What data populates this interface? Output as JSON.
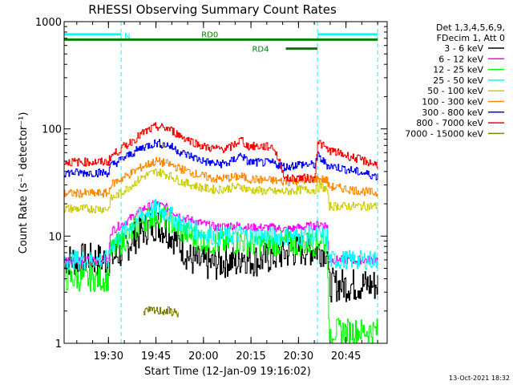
{
  "chart_data": {
    "type": "line",
    "title": "RHESSI Observing Summary Count Rates",
    "xlabel": "Start Time (12-Jan-09 19:16:02)",
    "ylabel": "Count Rate (s⁻¹ detector⁻¹)",
    "y_scale": "log",
    "ylim": [
      1,
      1000
    ],
    "xlim_minutes": [
      0,
      102
    ],
    "x_ticks": [
      {
        "minutes": 14,
        "label": "19:30"
      },
      {
        "minutes": 29,
        "label": "19:45"
      },
      {
        "minutes": 44,
        "label": "20:00"
      },
      {
        "minutes": 59,
        "label": "20:15"
      },
      {
        "minutes": 74,
        "label": "20:30"
      },
      {
        "minutes": 89,
        "label": "20:45"
      }
    ],
    "y_ticks": [
      {
        "value": 1,
        "label": "1"
      },
      {
        "value": 10,
        "label": "10"
      },
      {
        "value": 100,
        "label": "100"
      },
      {
        "value": 1000,
        "label": "1000"
      }
    ],
    "legend_header": [
      "Det 1,3,4,5,6,9,",
      "FDecim 1, Att 0"
    ],
    "legend_position": "right",
    "series": [
      {
        "name": "3 - 6 keV",
        "color": "#000000",
        "points": [
          [
            0,
            6
          ],
          [
            14,
            6
          ],
          [
            18,
            7
          ],
          [
            21,
            9
          ],
          [
            25,
            11.5
          ],
          [
            29,
            13
          ],
          [
            33,
            11
          ],
          [
            37,
            8
          ],
          [
            40,
            6
          ],
          [
            44,
            5.5
          ],
          [
            48,
            5.5
          ],
          [
            52,
            6
          ],
          [
            55,
            5.5
          ],
          [
            56,
            7
          ],
          [
            58,
            6
          ],
          [
            62,
            6
          ],
          [
            66,
            6.5
          ],
          [
            70,
            7
          ],
          [
            74,
            7.5
          ],
          [
            80,
            7.5
          ],
          [
            83,
            7.5
          ],
          [
            83.5,
            3.5
          ],
          [
            99,
            3.5
          ]
        ]
      },
      {
        "name": "6 - 12 keV",
        "color": "#ff00ff",
        "points": [
          [
            0,
            6
          ],
          [
            14,
            6
          ],
          [
            14.5,
            11
          ],
          [
            20,
            14
          ],
          [
            25,
            18
          ],
          [
            29,
            20
          ],
          [
            33,
            18
          ],
          [
            37,
            15
          ],
          [
            44,
            13
          ],
          [
            48,
            12
          ],
          [
            52,
            12.5
          ],
          [
            56,
            12.5
          ],
          [
            58,
            12
          ],
          [
            66,
            12
          ],
          [
            70,
            11.5
          ],
          [
            74,
            12
          ],
          [
            79,
            12.5
          ],
          [
            81,
            13
          ],
          [
            83,
            12.5
          ],
          [
            83.5,
            6
          ],
          [
            99,
            6
          ]
        ]
      },
      {
        "name": "12 - 25 keV",
        "color": "#00ff00",
        "points": [
          [
            0,
            4
          ],
          [
            14,
            4
          ],
          [
            14.5,
            7
          ],
          [
            20,
            10
          ],
          [
            25,
            14
          ],
          [
            29,
            16
          ],
          [
            33,
            14
          ],
          [
            37,
            11
          ],
          [
            44,
            9
          ],
          [
            48,
            8.5
          ],
          [
            52,
            8.5
          ],
          [
            56,
            9
          ],
          [
            58,
            8.5
          ],
          [
            66,
            8.5
          ],
          [
            70,
            8.5
          ],
          [
            74,
            8.5
          ],
          [
            79,
            8.5
          ],
          [
            81,
            9.5
          ],
          [
            83,
            8.5
          ],
          [
            83.5,
            1.3
          ],
          [
            99,
            1.3
          ]
        ]
      },
      {
        "name": "25 - 50 keV",
        "color": "#00ffff",
        "points": [
          [
            0,
            6
          ],
          [
            14,
            6
          ],
          [
            14.5,
            8
          ],
          [
            20,
            12
          ],
          [
            25,
            16
          ],
          [
            29,
            18
          ],
          [
            33,
            16
          ],
          [
            37,
            13
          ],
          [
            44,
            10.5
          ],
          [
            48,
            10
          ],
          [
            52,
            10
          ],
          [
            56,
            10.5
          ],
          [
            58,
            10
          ],
          [
            66,
            10
          ],
          [
            70,
            10
          ],
          [
            74,
            10
          ],
          [
            81,
            10
          ],
          [
            83,
            10
          ],
          [
            83.5,
            6
          ],
          [
            99,
            6
          ]
        ]
      },
      {
        "name": "50 - 100 keV",
        "color": "#cccc00",
        "points": [
          [
            0,
            18
          ],
          [
            14,
            18
          ],
          [
            14.5,
            22
          ],
          [
            20,
            28
          ],
          [
            25,
            36
          ],
          [
            29,
            40
          ],
          [
            33,
            37
          ],
          [
            37,
            32
          ],
          [
            44,
            28
          ],
          [
            48,
            27
          ],
          [
            52,
            28
          ],
          [
            56,
            29
          ],
          [
            58,
            27
          ],
          [
            66,
            26
          ],
          [
            70,
            26
          ],
          [
            74,
            27
          ],
          [
            79,
            27
          ],
          [
            81,
            29
          ],
          [
            83,
            27
          ],
          [
            83.5,
            19
          ],
          [
            99,
            19
          ]
        ]
      },
      {
        "name": "100 - 300 keV",
        "color": "#ff8800",
        "points": [
          [
            0,
            25
          ],
          [
            14,
            25
          ],
          [
            14.5,
            30
          ],
          [
            20,
            37
          ],
          [
            25,
            45
          ],
          [
            29,
            50
          ],
          [
            33,
            47
          ],
          [
            37,
            42
          ],
          [
            44,
            36
          ],
          [
            48,
            34
          ],
          [
            52,
            35
          ],
          [
            56,
            36
          ],
          [
            58,
            34
          ],
          [
            66,
            33
          ],
          [
            70,
            32
          ],
          [
            74,
            33
          ],
          [
            79,
            34
          ],
          [
            81,
            34
          ],
          [
            83,
            33
          ],
          [
            83.5,
            29
          ],
          [
            99,
            25
          ]
        ]
      },
      {
        "name": "300 - 800 keV",
        "color": "#0000ff",
        "points": [
          [
            0,
            39
          ],
          [
            14,
            39
          ],
          [
            14.5,
            45
          ],
          [
            20,
            56
          ],
          [
            25,
            68
          ],
          [
            29,
            74
          ],
          [
            33,
            70
          ],
          [
            37,
            60
          ],
          [
            44,
            50
          ],
          [
            48,
            47
          ],
          [
            52,
            48
          ],
          [
            56,
            58
          ],
          [
            57,
            52
          ],
          [
            58,
            49
          ],
          [
            66,
            48
          ],
          [
            70,
            44
          ],
          [
            74,
            47
          ],
          [
            79,
            46
          ],
          [
            80,
            56
          ],
          [
            83,
            46
          ],
          [
            99,
            36
          ]
        ]
      },
      {
        "name": "800 - 7000 keV",
        "color": "#ff0000",
        "points": [
          [
            0,
            49
          ],
          [
            14,
            49
          ],
          [
            14.5,
            55
          ],
          [
            20,
            72
          ],
          [
            25,
            92
          ],
          [
            29,
            105
          ],
          [
            33,
            100
          ],
          [
            37,
            85
          ],
          [
            44,
            68
          ],
          [
            48,
            65
          ],
          [
            52,
            66
          ],
          [
            56,
            80
          ],
          [
            57,
            72
          ],
          [
            58,
            69
          ],
          [
            66,
            68
          ],
          [
            70,
            34
          ],
          [
            74,
            35
          ],
          [
            79,
            34
          ],
          [
            80,
            77
          ],
          [
            83,
            64
          ],
          [
            99,
            46
          ]
        ]
      },
      {
        "name": "7000 - 15000 keV",
        "color": "#808000",
        "points": [
          [
            25,
            1.9
          ],
          [
            25,
            2
          ],
          [
            29,
            2
          ],
          [
            33,
            2
          ],
          [
            36,
            1.9
          ]
        ]
      }
    ],
    "annotations": [
      {
        "label": "N",
        "color": "#00ffff"
      },
      {
        "label": "RD0",
        "color": "#008000"
      },
      {
        "label": "RD4",
        "color": "#008000"
      }
    ],
    "bars": [
      {
        "label": "N",
        "color": "#00ffff",
        "x_minutes": [
          0,
          18
        ],
        "y": 760
      },
      {
        "label": "N",
        "color": "#00ffff",
        "x_minutes": [
          80,
          99
        ],
        "y": 760
      },
      {
        "label": "RD0",
        "color": "#008000",
        "x_minutes": [
          0,
          99
        ],
        "y": 680
      },
      {
        "label": "RD4",
        "color": "#008000",
        "x_minutes": [
          70,
          80
        ],
        "y": 560
      }
    ],
    "dashed_lines_minutes": [
      18,
      80,
      99
    ],
    "timestamp": "13-Oct-2021 18:32"
  }
}
